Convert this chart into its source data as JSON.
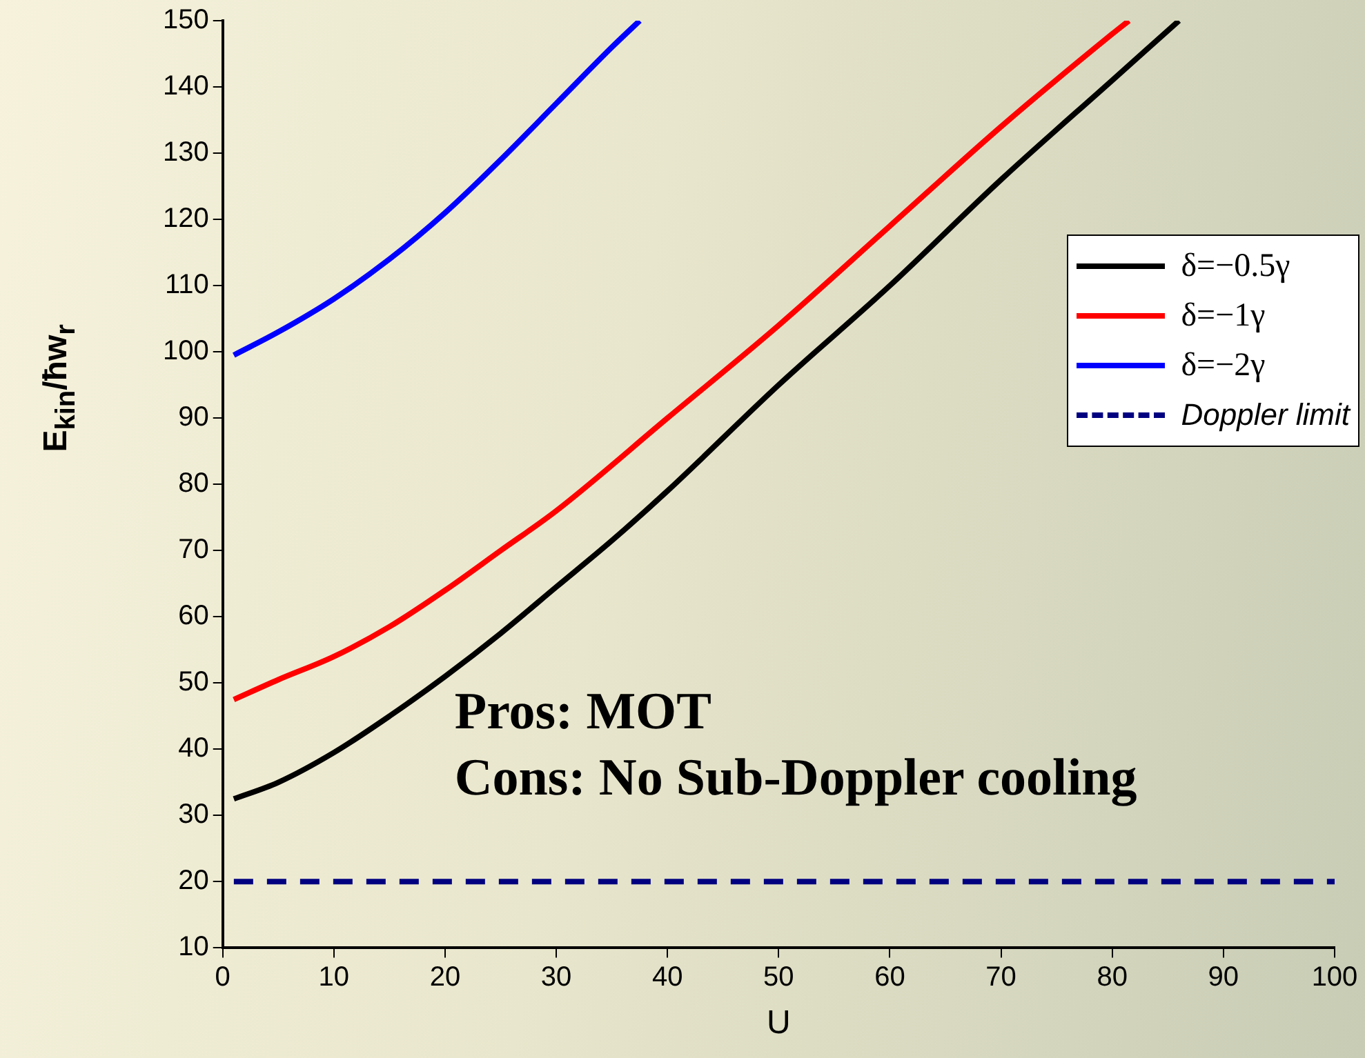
{
  "chart_data": {
    "type": "line",
    "xlabel": "U",
    "ylabel": "E$_{kin}$/ħw$_{r}$",
    "xlim": [
      0,
      100
    ],
    "xticks": [
      0,
      10,
      20,
      30,
      40,
      50,
      60,
      70,
      80,
      90,
      100
    ],
    "ylim": [
      10,
      150
    ],
    "yticks": [
      10,
      20,
      30,
      40,
      50,
      60,
      70,
      80,
      90,
      100,
      110,
      120,
      130,
      140,
      150
    ],
    "grid": false,
    "legend": "top right",
    "marker": "none",
    "series": [
      {
        "name": "δ=−0.5γ",
        "color": "#000000",
        "line_style": "solid",
        "x": [
          1,
          5,
          10,
          15,
          20,
          25,
          30,
          35,
          40,
          50,
          60,
          70,
          80,
          86
        ],
        "values": [
          32.5,
          35,
          39.5,
          45,
          51,
          57.5,
          64.5,
          71.5,
          79,
          95,
          110,
          126,
          141,
          150
        ]
      },
      {
        "name": "δ=−1γ",
        "color": "#ff0000",
        "line_style": "solid",
        "x": [
          1,
          5,
          10,
          15,
          20,
          25,
          30,
          40,
          50,
          60,
          70,
          80,
          81.5
        ],
        "values": [
          47.5,
          50.5,
          54,
          58.5,
          64,
          70,
          76,
          90,
          104,
          119,
          134,
          148,
          150
        ]
      },
      {
        "name": "δ=−2γ",
        "color": "#0000ff",
        "line_style": "solid",
        "x": [
          1,
          5,
          10,
          15,
          20,
          25,
          30,
          35,
          37.5
        ],
        "values": [
          99.5,
          103,
          108,
          114,
          121,
          129,
          137.5,
          146,
          150
        ]
      },
      {
        "name": "Doppler limit",
        "color": "#000080",
        "line_style": "dashed",
        "x": [
          1,
          100
        ],
        "values": [
          20,
          20
        ]
      }
    ],
    "annotations": [
      "Pros: MOT",
      "Cons: No Sub-Doppler cooling"
    ]
  }
}
